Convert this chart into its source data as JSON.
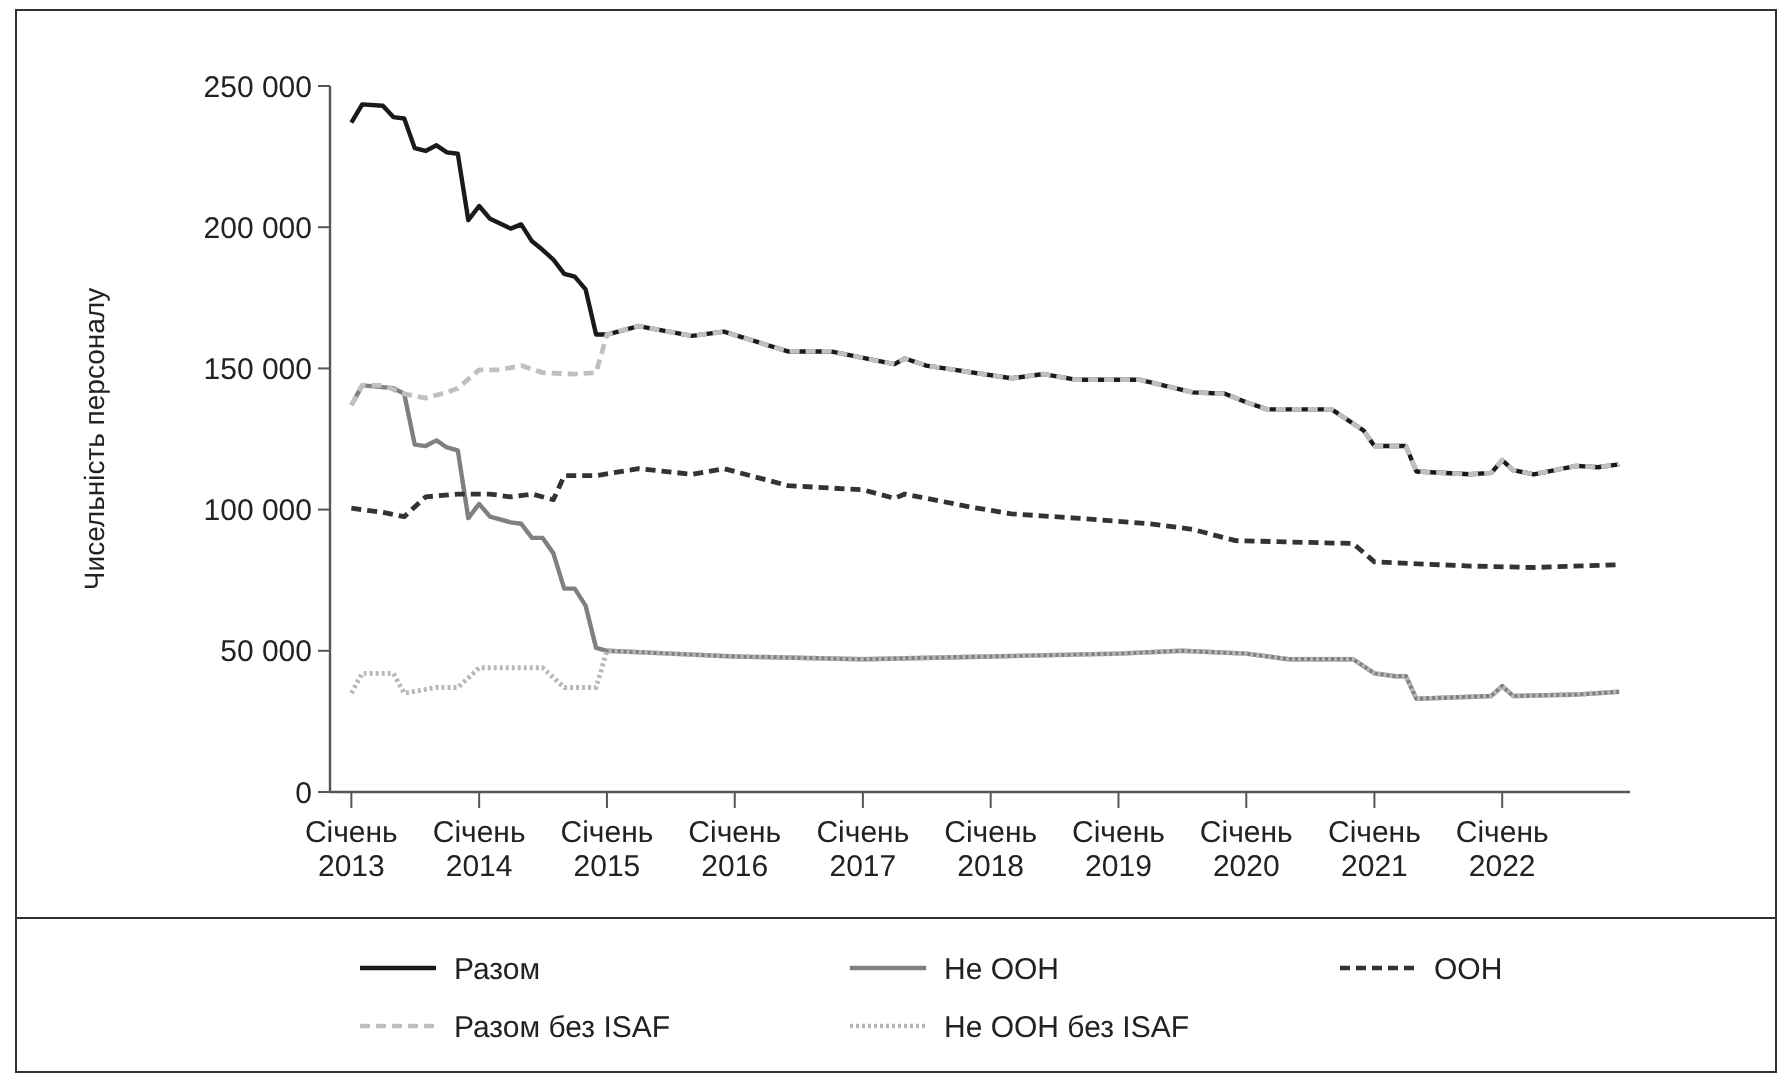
{
  "chart_data": {
    "type": "line",
    "ylabel": "Чисельність персоналу",
    "xlim": [
      "2012-11",
      "2023-01"
    ],
    "xticks": [
      {
        "value": "2013-01",
        "label": "Січень 2013"
      },
      {
        "value": "2014-01",
        "label": "Січень 2014"
      },
      {
        "value": "2015-01",
        "label": "Січень 2015"
      },
      {
        "value": "2016-01",
        "label": "Січень 2016"
      },
      {
        "value": "2017-01",
        "label": "Січень 2017"
      },
      {
        "value": "2018-01",
        "label": "Січень 2018"
      },
      {
        "value": "2019-01",
        "label": "Січень 2019"
      },
      {
        "value": "2020-01",
        "label": "Січень 2020"
      },
      {
        "value": "2021-01",
        "label": "Січень 2021"
      },
      {
        "value": "2022-01",
        "label": "Січень 2022"
      }
    ],
    "ylim": [
      0,
      250000
    ],
    "yticks": [
      0,
      {
        "value": 50000,
        "label": "50 000"
      },
      {
        "value": 100000,
        "label": "100 000"
      },
      {
        "value": 150000,
        "label": "150 000"
      },
      {
        "value": 200000,
        "label": "200 000"
      },
      {
        "value": 250000,
        "label": "250 000"
      }
    ],
    "grid": false,
    "legend": "bottom",
    "series": [
      {
        "name": "Разом",
        "color": "#1a1a1a",
        "line_style": "solid",
        "x": [
          "2013-01",
          "2013-02",
          "2013-04",
          "2013-05",
          "2013-06",
          "2013-07",
          "2013-08",
          "2013-09",
          "2013-10",
          "2013-11",
          "2013-12",
          "2014-01",
          "2014-02",
          "2014-04",
          "2014-05",
          "2014-06",
          "2014-07",
          "2014-08",
          "2014-09",
          "2014-10",
          "2014-11",
          "2014-12",
          "2015-01",
          "2015-04",
          "2015-09",
          "2015-12",
          "2016-06",
          "2016-10",
          "2017-04",
          "2017-05",
          "2017-07",
          "2018-03",
          "2018-06",
          "2018-09",
          "2019-03",
          "2019-08",
          "2019-11",
          "2020-01",
          "2020-03",
          "2020-09",
          "2020-12",
          "2021-01",
          "2021-04",
          "2021-05",
          "2021-10",
          "2021-12",
          "2022-01",
          "2022-02",
          "2022-04",
          "2022-08",
          "2022-10",
          "2022-12"
        ],
        "values": [
          237000,
          243500,
          243000,
          239000,
          238500,
          228000,
          227000,
          229000,
          226500,
          226000,
          202500,
          207500,
          203000,
          199500,
          201000,
          195000,
          192000,
          188500,
          183500,
          182500,
          178000,
          162000,
          162000,
          165000,
          161500,
          163000,
          156000,
          156000,
          151500,
          153500,
          151000,
          146500,
          148000,
          146000,
          146000,
          141500,
          141000,
          138000,
          135500,
          135500,
          128000,
          122500,
          122500,
          113500,
          112500,
          113000,
          117500,
          114000,
          112500,
          115500,
          115000,
          116000
        ]
      },
      {
        "name": "Не ООН",
        "color": "#808080",
        "line_style": "solid",
        "x": [
          "2013-01",
          "2013-02",
          "2013-05",
          "2013-06",
          "2013-07",
          "2013-08",
          "2013-09",
          "2013-10",
          "2013-11",
          "2013-12",
          "2014-01",
          "2014-02",
          "2014-04",
          "2014-05",
          "2014-06",
          "2014-07",
          "2014-08",
          "2014-09",
          "2014-10",
          "2014-11",
          "2014-12",
          "2015-01",
          "2015-07",
          "2016-01",
          "2017-01",
          "2018-01",
          "2019-01",
          "2019-07",
          "2020-01",
          "2020-05",
          "2020-11",
          "2021-01",
          "2021-03",
          "2021-04",
          "2021-05",
          "2021-12",
          "2022-01",
          "2022-02",
          "2022-08",
          "2022-12"
        ],
        "values": [
          137000,
          144000,
          143000,
          141000,
          123000,
          122500,
          124500,
          122000,
          121000,
          97000,
          102000,
          97500,
          95500,
          95000,
          90000,
          90000,
          84500,
          72000,
          72000,
          66000,
          51000,
          50000,
          49000,
          48000,
          47000,
          48000,
          49000,
          50000,
          49000,
          47000,
          47000,
          42000,
          41000,
          41000,
          33000,
          34000,
          37500,
          34000,
          34500,
          35500
        ]
      },
      {
        "name": "ООН",
        "color": "#333333",
        "line_style": "dashed",
        "x": [
          "2013-01",
          "2013-04",
          "2013-06",
          "2013-08",
          "2013-11",
          "2014-02",
          "2014-04",
          "2014-06",
          "2014-08",
          "2014-09",
          "2014-12",
          "2015-04",
          "2015-09",
          "2015-12",
          "2016-06",
          "2017-01",
          "2017-04",
          "2017-05",
          "2017-11",
          "2018-03",
          "2018-09",
          "2019-04",
          "2019-08",
          "2019-12",
          "2020-11",
          "2021-01",
          "2021-10",
          "2022-04",
          "2022-12"
        ],
        "values": [
          100500,
          99000,
          97500,
          104500,
          105500,
          105500,
          104500,
          105500,
          103500,
          112000,
          112000,
          114500,
          112500,
          114500,
          108500,
          107000,
          104000,
          105500,
          101000,
          98500,
          97000,
          95000,
          93000,
          89000,
          88000,
          81500,
          80000,
          79500,
          80500
        ]
      },
      {
        "name": "Разом без ISAF",
        "color": "#c0c0c0",
        "line_style": "dashed",
        "x": [
          "2013-01",
          "2013-02",
          "2013-04",
          "2013-06",
          "2013-08",
          "2013-10",
          "2013-11",
          "2014-01",
          "2014-03",
          "2014-05",
          "2014-07",
          "2014-10",
          "2014-12",
          "2015-01",
          "2015-04",
          "2015-09",
          "2015-12",
          "2016-06",
          "2016-10",
          "2017-04",
          "2017-05",
          "2017-07",
          "2018-03",
          "2018-06",
          "2018-09",
          "2019-03",
          "2019-08",
          "2019-11",
          "2020-01",
          "2020-03",
          "2020-09",
          "2020-12",
          "2021-01",
          "2021-04",
          "2021-05",
          "2021-10",
          "2021-12",
          "2022-01",
          "2022-02",
          "2022-04",
          "2022-08",
          "2022-10",
          "2022-12"
        ],
        "values": [
          137000,
          144000,
          144000,
          141000,
          139500,
          141500,
          143000,
          149500,
          149500,
          151000,
          148500,
          148000,
          148500,
          162000,
          165000,
          161500,
          163000,
          156000,
          156000,
          151500,
          153500,
          151000,
          146500,
          148000,
          146000,
          146000,
          141500,
          141000,
          138000,
          135500,
          135500,
          128000,
          122500,
          122500,
          113500,
          112500,
          113000,
          117500,
          114000,
          112500,
          115500,
          115000,
          116000
        ]
      },
      {
        "name": "Не ООН без ISAF",
        "color": "#b8b8b8",
        "line_style": "dotted",
        "x": [
          "2013-01",
          "2013-02",
          "2013-05",
          "2013-06",
          "2013-09",
          "2013-11",
          "2014-01",
          "2014-07",
          "2014-09",
          "2014-12",
          "2015-01",
          "2015-07",
          "2016-01",
          "2017-01",
          "2018-01",
          "2019-01",
          "2019-07",
          "2020-01",
          "2020-05",
          "2020-11",
          "2021-01",
          "2021-03",
          "2021-04",
          "2021-05",
          "2021-12",
          "2022-01",
          "2022-02",
          "2022-08",
          "2022-12"
        ],
        "values": [
          35000,
          42000,
          42000,
          35000,
          37000,
          37000,
          44000,
          44000,
          37000,
          37000,
          50000,
          49000,
          48000,
          47000,
          48000,
          49000,
          50000,
          49000,
          47000,
          47000,
          42000,
          41000,
          41000,
          33000,
          34000,
          37500,
          34000,
          34500,
          35500
        ]
      }
    ]
  }
}
